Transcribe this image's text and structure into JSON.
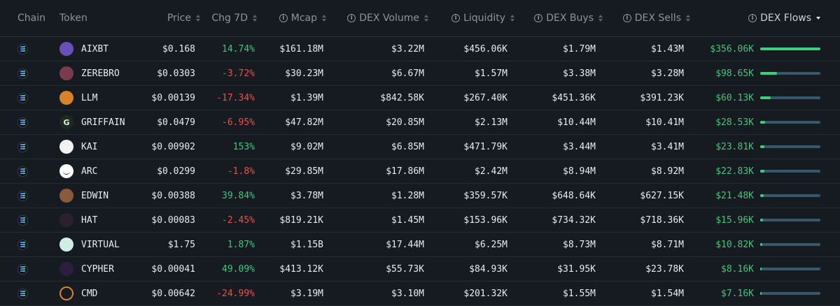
{
  "header": {
    "chain": "Chain",
    "token": "Token",
    "price": "Price",
    "chg7d": "Chg 7D",
    "mcap": "Mcap",
    "dex_volume": "DEX Volume",
    "liquidity": "Liquidity",
    "dex_buys": "DEX Buys",
    "dex_sells": "DEX Sells",
    "dex_flows": "DEX Flows"
  },
  "sort": {
    "column": "DEX Flows",
    "direction": "descending"
  },
  "colors": {
    "positive": "#4ac27d",
    "negative": "#e5534b",
    "flow_bar": "#3fcf7b",
    "flow_track": "#37586b"
  },
  "rows": [
    {
      "token": "AIXBT",
      "price": "$0.168",
      "chg": "14.74%",
      "dir": "pos",
      "mcap": "$161.18M",
      "vol": "$3.22M",
      "liq": "$456.06K",
      "buys": "$1.79M",
      "sells": "$1.43M",
      "flows": "$356.06K",
      "flow_fraction": 1.0,
      "icon": "aixbt-logo-icon",
      "logo_bg": "#6b4fb8",
      "glyph": ""
    },
    {
      "token": "ZEREBRO",
      "price": "$0.0303",
      "chg": "-3.72%",
      "dir": "neg",
      "mcap": "$30.23M",
      "vol": "$6.67M",
      "liq": "$1.57M",
      "buys": "$3.38M",
      "sells": "$3.28M",
      "flows": "$98.65K",
      "flow_fraction": 0.277,
      "icon": "zerebro-logo-icon",
      "logo_bg": "#7a3b4e",
      "glyph": ""
    },
    {
      "token": "LLM",
      "price": "$0.00139",
      "chg": "-17.34%",
      "dir": "neg",
      "mcap": "$1.39M",
      "vol": "$842.58K",
      "liq": "$267.40K",
      "buys": "$451.36K",
      "sells": "$391.23K",
      "flows": "$60.13K",
      "flow_fraction": 0.169,
      "icon": "llm-logo-icon",
      "logo_bg": "#d9822b",
      "glyph": ""
    },
    {
      "token": "GRIFFAIN",
      "price": "$0.0479",
      "chg": "-6.95%",
      "dir": "neg",
      "mcap": "$47.82M",
      "vol": "$20.85M",
      "liq": "$2.13M",
      "buys": "$10.44M",
      "sells": "$10.41M",
      "flows": "$28.53K",
      "flow_fraction": 0.08,
      "icon": "griffain-logo-icon",
      "logo_bg": "#1f2a1f",
      "glyph": "G"
    },
    {
      "token": "KAI",
      "price": "$0.00902",
      "chg": "153%",
      "dir": "pos",
      "mcap": "$9.02M",
      "vol": "$6.85M",
      "liq": "$471.79K",
      "buys": "$3.44M",
      "sells": "$3.41M",
      "flows": "$23.81K",
      "flow_fraction": 0.067,
      "icon": "kai-logo-icon",
      "logo_bg": "#f2f2f2",
      "glyph": ""
    },
    {
      "token": "ARC",
      "price": "$0.0299",
      "chg": "-1.8%",
      "dir": "neg",
      "mcap": "$29.85M",
      "vol": "$17.86M",
      "liq": "$2.42M",
      "buys": "$8.94M",
      "sells": "$8.92M",
      "flows": "$22.83K",
      "flow_fraction": 0.064,
      "icon": "arc-logo-icon",
      "logo_bg": "#ffffff",
      "glyph": ""
    },
    {
      "token": "EDWIN",
      "price": "$0.00388",
      "chg": "39.84%",
      "dir": "pos",
      "mcap": "$3.78M",
      "vol": "$1.28M",
      "liq": "$359.57K",
      "buys": "$648.64K",
      "sells": "$627.15K",
      "flows": "$21.48K",
      "flow_fraction": 0.06,
      "icon": "edwin-logo-icon",
      "logo_bg": "#8a5a3c",
      "glyph": ""
    },
    {
      "token": "HAT",
      "price": "$0.00083",
      "chg": "-2.45%",
      "dir": "neg",
      "mcap": "$819.21K",
      "vol": "$1.45M",
      "liq": "$153.96K",
      "buys": "$734.32K",
      "sells": "$718.36K",
      "flows": "$15.96K",
      "flow_fraction": 0.045,
      "icon": "hat-logo-icon",
      "logo_bg": "#2a2030",
      "glyph": ""
    },
    {
      "token": "VIRTUAL",
      "price": "$1.75",
      "chg": "1.87%",
      "dir": "pos",
      "mcap": "$1.15B",
      "vol": "$17.44M",
      "liq": "$6.25M",
      "buys": "$8.73M",
      "sells": "$8.71M",
      "flows": "$10.82K",
      "flow_fraction": 0.03,
      "icon": "virtual-logo-icon",
      "logo_bg": "#cfeee4",
      "glyph": ""
    },
    {
      "token": "CYPHER",
      "price": "$0.00041",
      "chg": "49.09%",
      "dir": "pos",
      "mcap": "$413.12K",
      "vol": "$55.73K",
      "liq": "$84.93K",
      "buys": "$31.95K",
      "sells": "$23.78K",
      "flows": "$8.16K",
      "flow_fraction": 0.023,
      "icon": "cypher-logo-icon",
      "logo_bg": "#2b1f40",
      "glyph": ""
    },
    {
      "token": "CMD",
      "price": "$0.00642",
      "chg": "-24.99%",
      "dir": "neg",
      "mcap": "$3.19M",
      "vol": "$3.10M",
      "liq": "$201.32K",
      "buys": "$1.55M",
      "sells": "$1.54M",
      "flows": "$7.16K",
      "flow_fraction": 0.02,
      "icon": "cmd-logo-icon",
      "logo_bg": "#161b22",
      "glyph": ""
    }
  ]
}
